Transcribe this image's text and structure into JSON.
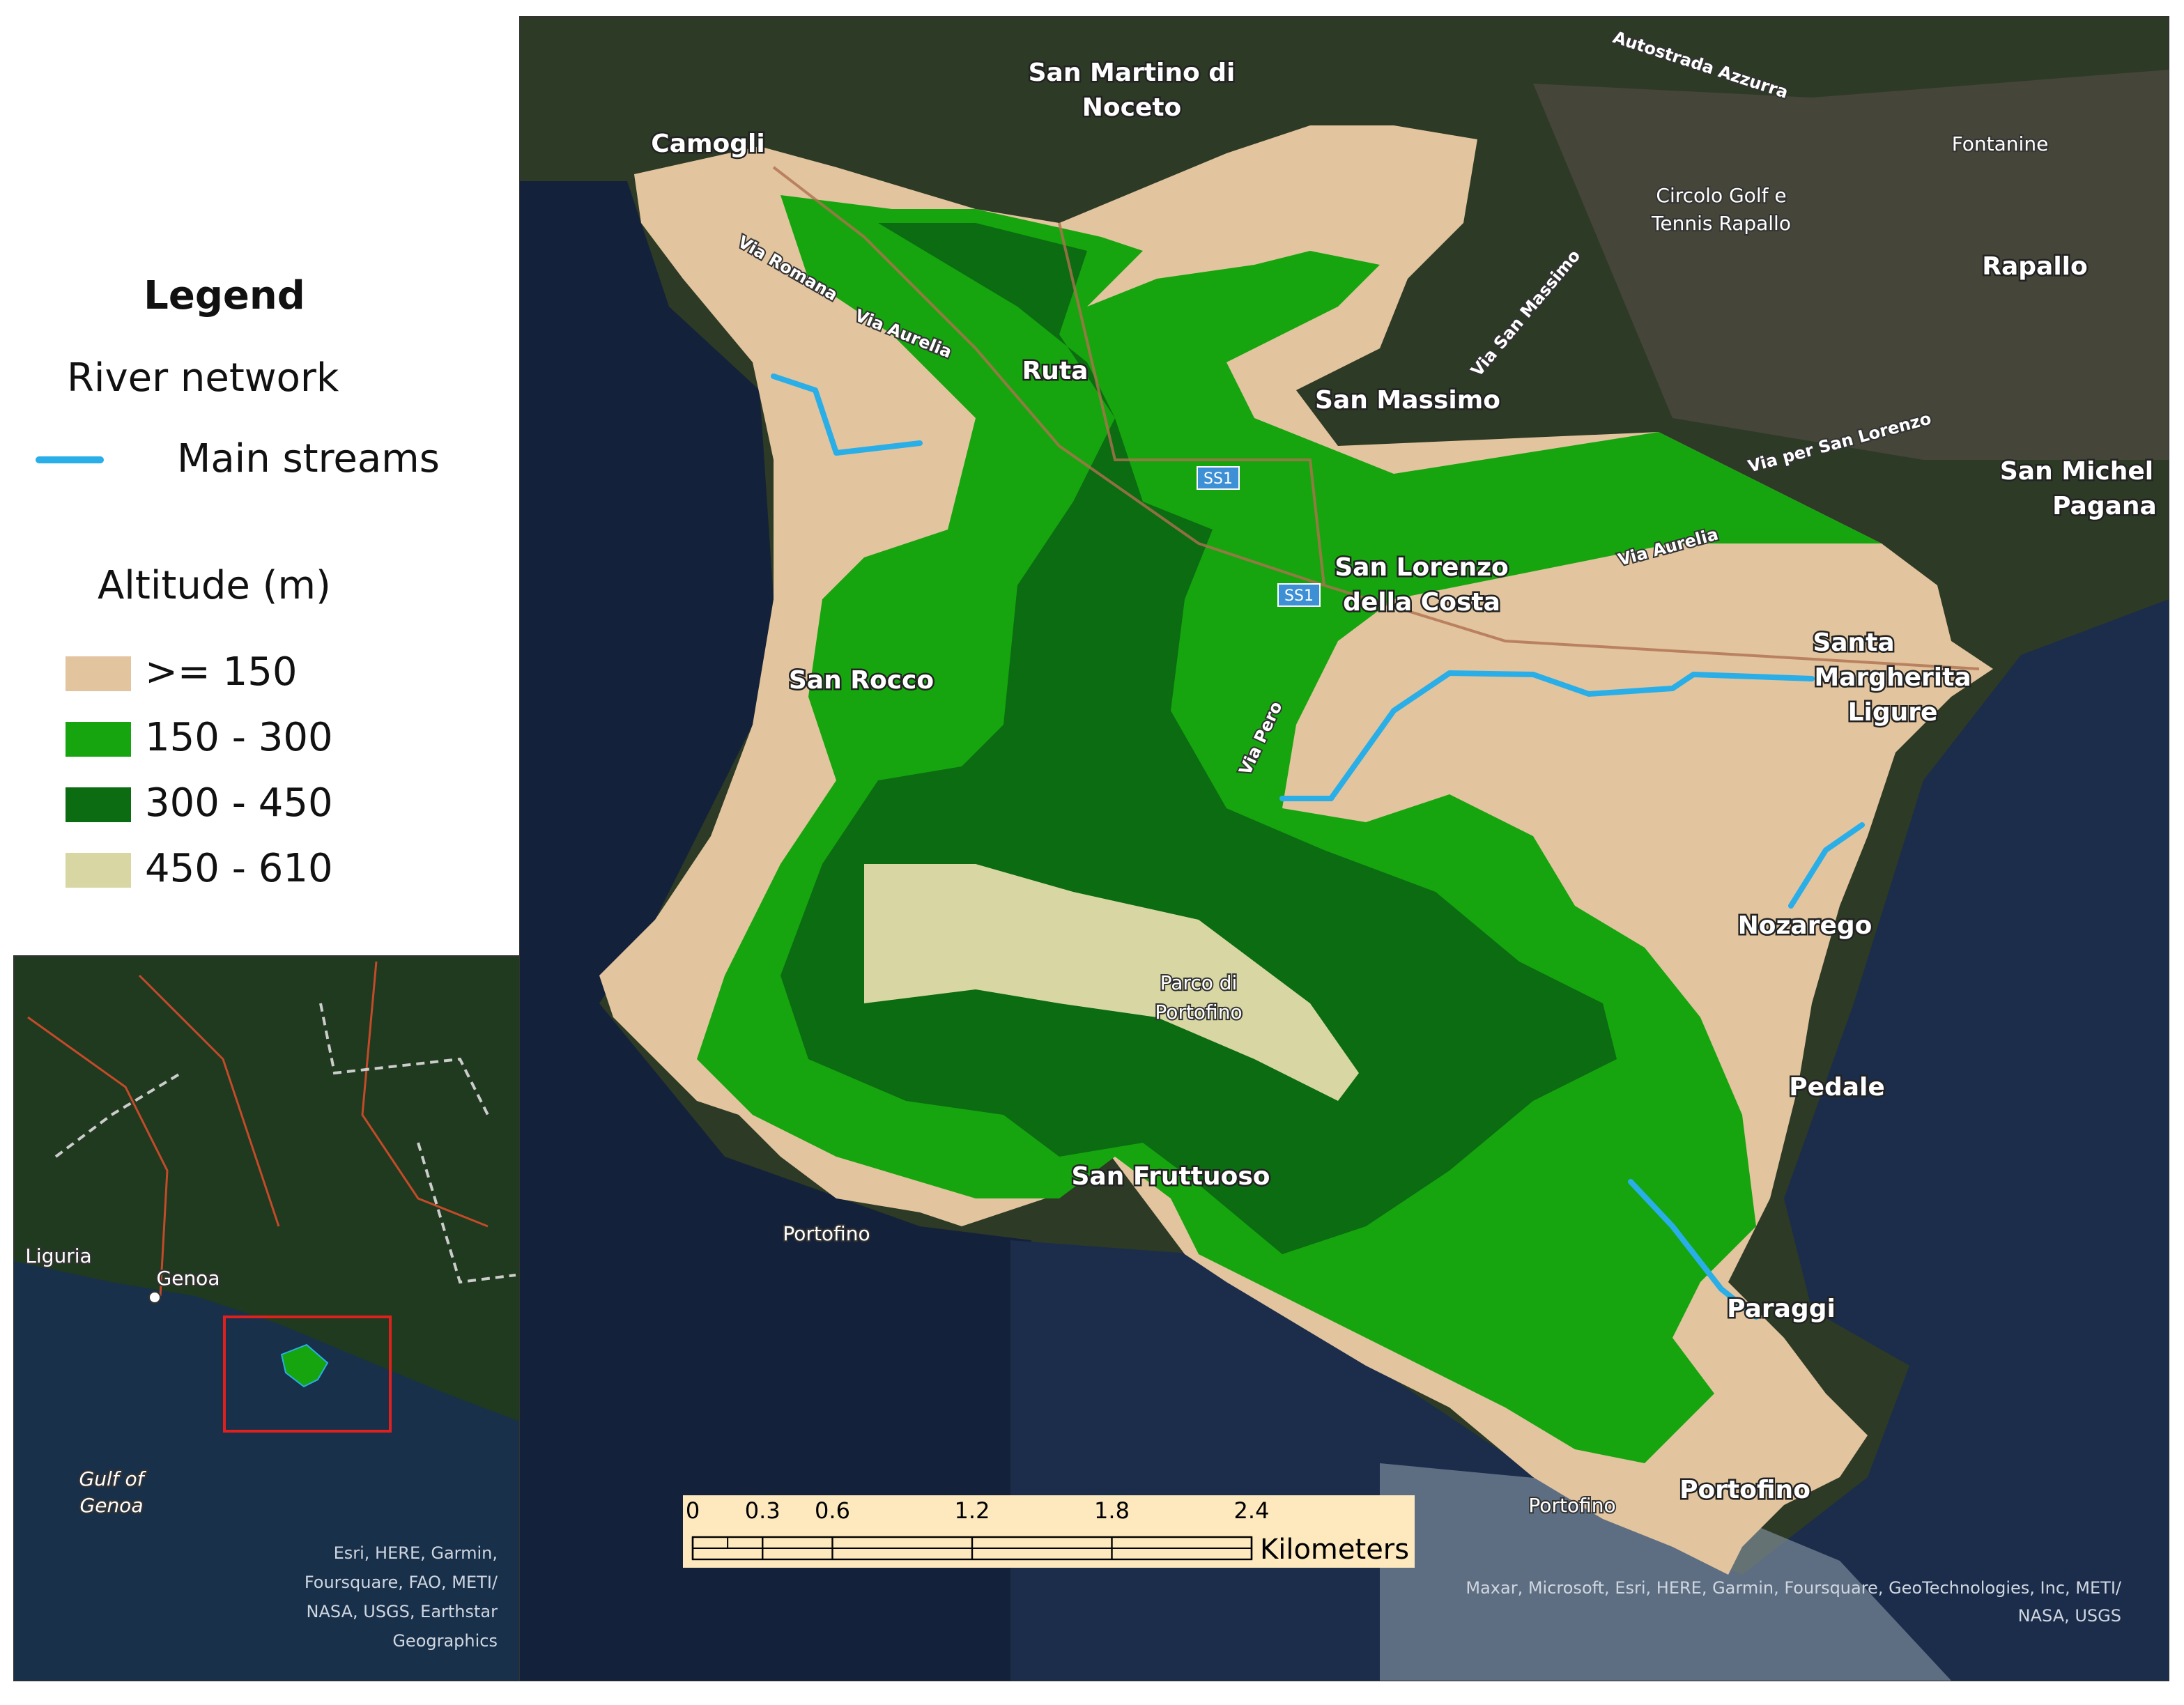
{
  "legend": {
    "title": "Legend",
    "river_group": "River network",
    "river_item": "Main streams",
    "altitude_group": "Altitude (m)",
    "altitude_items": [
      ">= 150",
      " 150 - 300",
      "300 - 450",
      "450 - 610"
    ]
  },
  "map_labels": [
    "San Martino di",
    "Noceto",
    "Camogli",
    "Ruta",
    "San Massimo",
    "San Lorenzo",
    "della Costa",
    "San Rocco",
    "Santa",
    "Margherita",
    "Ligure",
    "Nozarego",
    "Parco di",
    "Portofino",
    "Pedale",
    "San Fruttuoso",
    "Portofino",
    "Paraggi",
    "Portofino",
    "Portofino",
    "Fontanine",
    "Circolo Golf e",
    "Tennis Rapallo",
    "Rapallo",
    "San Michel",
    "Pagana"
  ],
  "road_labels": [
    "Autostrada Azzurra",
    "Via Romana",
    "Via Aurelia",
    "Via San Massimo",
    "Via per San Lorenzo",
    "Via Aurelia",
    "Via Pero"
  ],
  "road_shields": [
    "SS1",
    "SS1"
  ],
  "scale_bar": {
    "ticks": [
      0,
      0.3,
      0.6,
      1.2,
      1.8,
      2.4
    ],
    "unit": "Kilometers"
  },
  "attribution_main": [
    "Maxar, Microsoft, Esri, HERE, Garmin, Foursquare, GeoTechnologies, Inc, METI/",
    "NASA, USGS"
  ],
  "inset": {
    "labels": [
      "Liguria",
      "Genoa",
      "Gulf of",
      "Genoa"
    ],
    "attribution": [
      "Esri, HERE, Garmin,",
      "Foursquare, FAO, METI/",
      "NASA, USGS, Earthstar",
      "Geographics"
    ]
  }
}
